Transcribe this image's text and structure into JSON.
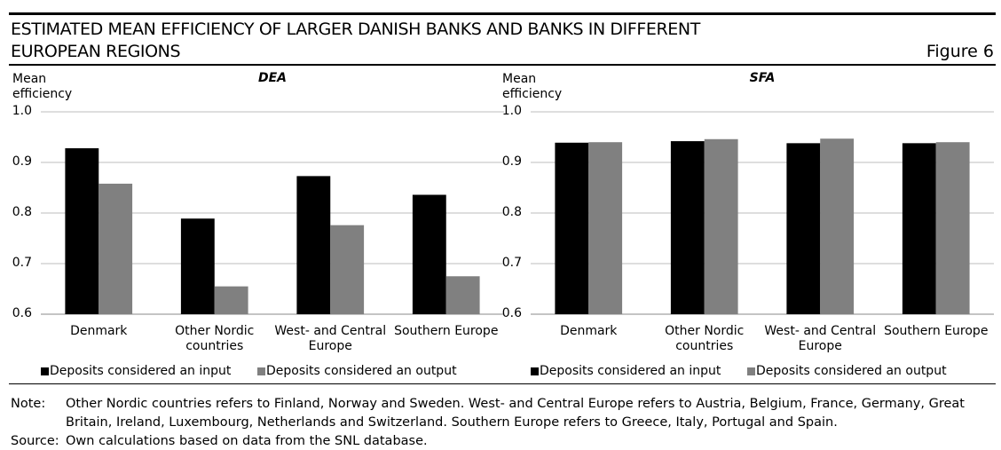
{
  "header": {
    "title": "ESTIMATED MEAN EFFICIENCY OF LARGER DANISH BANKS AND BANKS IN DIFFERENT EUROPEAN REGIONS",
    "figure": "Figure 6"
  },
  "chart_data": [
    {
      "type": "bar",
      "title": "DEA",
      "y_label": "Mean efficiency",
      "categories": [
        "Denmark",
        "Other Nordic countries",
        "West- and Central Europe",
        "Southern Europe"
      ],
      "series": [
        {
          "name": "Deposits considered an input",
          "color": "#000000",
          "values": [
            0.928,
            0.789,
            0.873,
            0.836
          ]
        },
        {
          "name": "Deposits considered an output",
          "color": "#808080",
          "values": [
            0.858,
            0.655,
            0.776,
            0.675
          ]
        }
      ],
      "ylim": [
        0.6,
        1
      ],
      "yticks": [
        0.6,
        0.7,
        0.8,
        0.9,
        {
          "value": 1,
          "label": "1.0"
        }
      ],
      "grid": true,
      "legend": "bottom"
    },
    {
      "type": "bar",
      "title": "SFA",
      "y_label": "Mean efficiency",
      "categories": [
        "Denmark",
        "Other Nordic countries",
        "West- and Central Europe",
        "Southern Europe"
      ],
      "series": [
        {
          "name": "Deposits considered an input",
          "color": "#000000",
          "values": [
            0.939,
            0.942,
            0.938,
            0.938
          ]
        },
        {
          "name": "Deposits considered an output",
          "color": "#808080",
          "values": [
            0.94,
            0.946,
            0.947,
            0.94
          ]
        }
      ],
      "ylim": [
        0.6,
        1
      ],
      "yticks": [
        0.6,
        0.7,
        0.8,
        0.9,
        {
          "value": 1,
          "label": "1.0"
        }
      ],
      "grid": true,
      "legend": "bottom"
    }
  ],
  "note": {
    "label": "Note:",
    "text": "Other Nordic countries refers to Finland, Norway and Sweden. West- and Central Europe refers to Austria, Belgium, France, Germany, Great Britain, Ireland, Luxembourg, Netherlands and Switzerland. Southern Europe refers to Greece, Italy, Portugal and Spain."
  },
  "source": {
    "label": "Source:",
    "text": "Own calculations based on data from the SNL database."
  }
}
